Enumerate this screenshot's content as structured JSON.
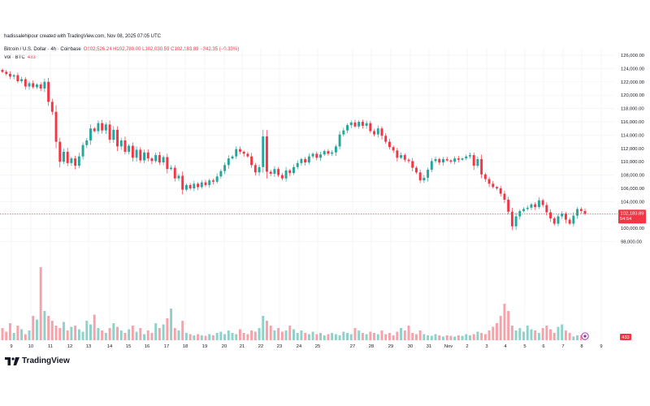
{
  "header": {
    "creator_line": "hadissalehipour created with TradingView.com, Nov 08, 2025 07:05 UTC",
    "symbol_line": "Bitcoin / U.S. Dollar · 4h · Coinbase",
    "ohlc_line": "O102,526.24 H102,780.00 L102,030.59 C102,183.89 −342.35 (−0.33%)",
    "vol_label": "Vol · BTC",
    "vol_value": "433"
  },
  "brand": {
    "name": "TradingView",
    "logo_icon": "tradingview-logo-icon"
  },
  "colors": {
    "up": "#26a69a",
    "down": "#f23645",
    "up_vol": "#8fd1c8",
    "down_vol": "#f7a1a9",
    "grid": "#f0f3fa"
  },
  "chart_data": {
    "type": "candlestick",
    "ylim": [
      96800,
      126600
    ],
    "y_ticks": [
      "98,000.00",
      "100,000.00",
      "102,000.00",
      "104,000.00",
      "106,000.00",
      "108,000.00",
      "110,000.00",
      "112,000.00",
      "114,000.00",
      "116,000.00",
      "118,000.00",
      "120,000.00",
      "122,000.00",
      "124,000.00",
      "126,000.00"
    ],
    "x_ticks": [
      "9",
      "10",
      "11",
      "12",
      "13",
      "14",
      "15",
      "16",
      "17",
      "18",
      "19",
      "20",
      "21",
      "22",
      "23",
      "24",
      "25",
      "27",
      "28",
      "29",
      "30",
      "31",
      "Nov",
      "2",
      "3",
      "4",
      "5",
      "6",
      "7",
      "8",
      "9"
    ],
    "last_price": "102,183.89",
    "countdown": "54:54",
    "last_volume": "433",
    "price_path": [
      123500,
      123200,
      122800,
      123000,
      122100,
      122400,
      121300,
      121800,
      121200,
      121600,
      121000,
      122000,
      119000,
      117500,
      113000,
      110000,
      111500,
      109800,
      110500,
      109400,
      110800,
      112500,
      113200,
      115000,
      114600,
      115800,
      114700,
      115600,
      113300,
      114800,
      112300,
      113200,
      111500,
      112400,
      110600,
      111800,
      110200,
      111400,
      110500,
      110100,
      111000,
      109900,
      110700,
      108900,
      109100,
      107500,
      107900,
      105800,
      106500,
      106000,
      106700,
      106200,
      106900,
      106500,
      107200,
      107000,
      107800,
      108600,
      109500,
      110500,
      110800,
      111900,
      111500,
      111200,
      110800,
      109500,
      108400,
      109200,
      113800,
      108500,
      108200,
      108900,
      108000,
      107500,
      108700,
      108300,
      109200,
      109800,
      110400,
      109900,
      110800,
      111200,
      110600,
      111100,
      111600,
      111200,
      111400,
      112300,
      114100,
      114700,
      115500,
      115900,
      115300,
      116000,
      115400,
      115800,
      114600,
      114100,
      115000,
      113900,
      113000,
      112200,
      111700,
      110600,
      111000,
      110300,
      110100,
      109100,
      108400,
      107200,
      107600,
      108800,
      110100,
      110400,
      109900,
      110400,
      110200,
      110000,
      110500,
      110300,
      110500,
      110800,
      111000,
      109400,
      110400,
      108100,
      107400,
      106700,
      106200,
      106000,
      105200,
      104300,
      102500,
      100300,
      101800,
      102600,
      102900,
      103100,
      103600,
      103200,
      104200,
      103500,
      102400,
      101500,
      100700,
      101800,
      102200,
      101300,
      100700,
      101900,
      102900,
      102600,
      102184
    ],
    "volumes": [
      5.0,
      3.5,
      7.0,
      3.0,
      6.0,
      4.5,
      2.5,
      4.0,
      10.0,
      8.5,
      30.0,
      12.0,
      10.0,
      8.0,
      6.0,
      5.0,
      7.5,
      4.0,
      5.5,
      6.0,
      4.5,
      3.5,
      8.0,
      6.5,
      10.5,
      5.0,
      4.0,
      3.0,
      5.0,
      7.0,
      5.5,
      4.0,
      3.0,
      4.5,
      6.0,
      3.5,
      5.0,
      2.5,
      4.0,
      3.0,
      7.0,
      5.0,
      6.5,
      9.0,
      13.0,
      5.0,
      4.0,
      8.0,
      3.0,
      2.5,
      2.0,
      2.5,
      2.0,
      1.8,
      2.5,
      2.0,
      3.0,
      3.5,
      2.5,
      4.0,
      3.0,
      2.5,
      4.5,
      3.0,
      2.5,
      4.0,
      3.5,
      5.0,
      10.0,
      8.0,
      6.0,
      4.0,
      5.0,
      3.5,
      4.0,
      6.0,
      4.5,
      3.0,
      4.0,
      3.0,
      2.5,
      3.5,
      2.5,
      3.0,
      2.0,
      2.5,
      3.0,
      2.5,
      2.0,
      3.5,
      3.0,
      2.5,
      5.0,
      4.0,
      3.0,
      2.5,
      3.5,
      3.0,
      2.5,
      4.0,
      2.5,
      3.0,
      2.0,
      3.5,
      5.0,
      4.0,
      6.0,
      3.0,
      2.5,
      4.0,
      2.5,
      2.0,
      1.8,
      2.5,
      2.0,
      1.5,
      2.0,
      1.8,
      1.5,
      2.0,
      1.8,
      2.5,
      2.0,
      2.5,
      3.5,
      3.0,
      2.5,
      4.0,
      5.5,
      7.0,
      10.0,
      15.0,
      12.0,
      6.0,
      4.0,
      5.0,
      3.5,
      6.0,
      4.5,
      4.0,
      3.0,
      5.0,
      6.0,
      4.5,
      3.0,
      5.5,
      6.5,
      4.0,
      3.0,
      1.5
    ]
  }
}
